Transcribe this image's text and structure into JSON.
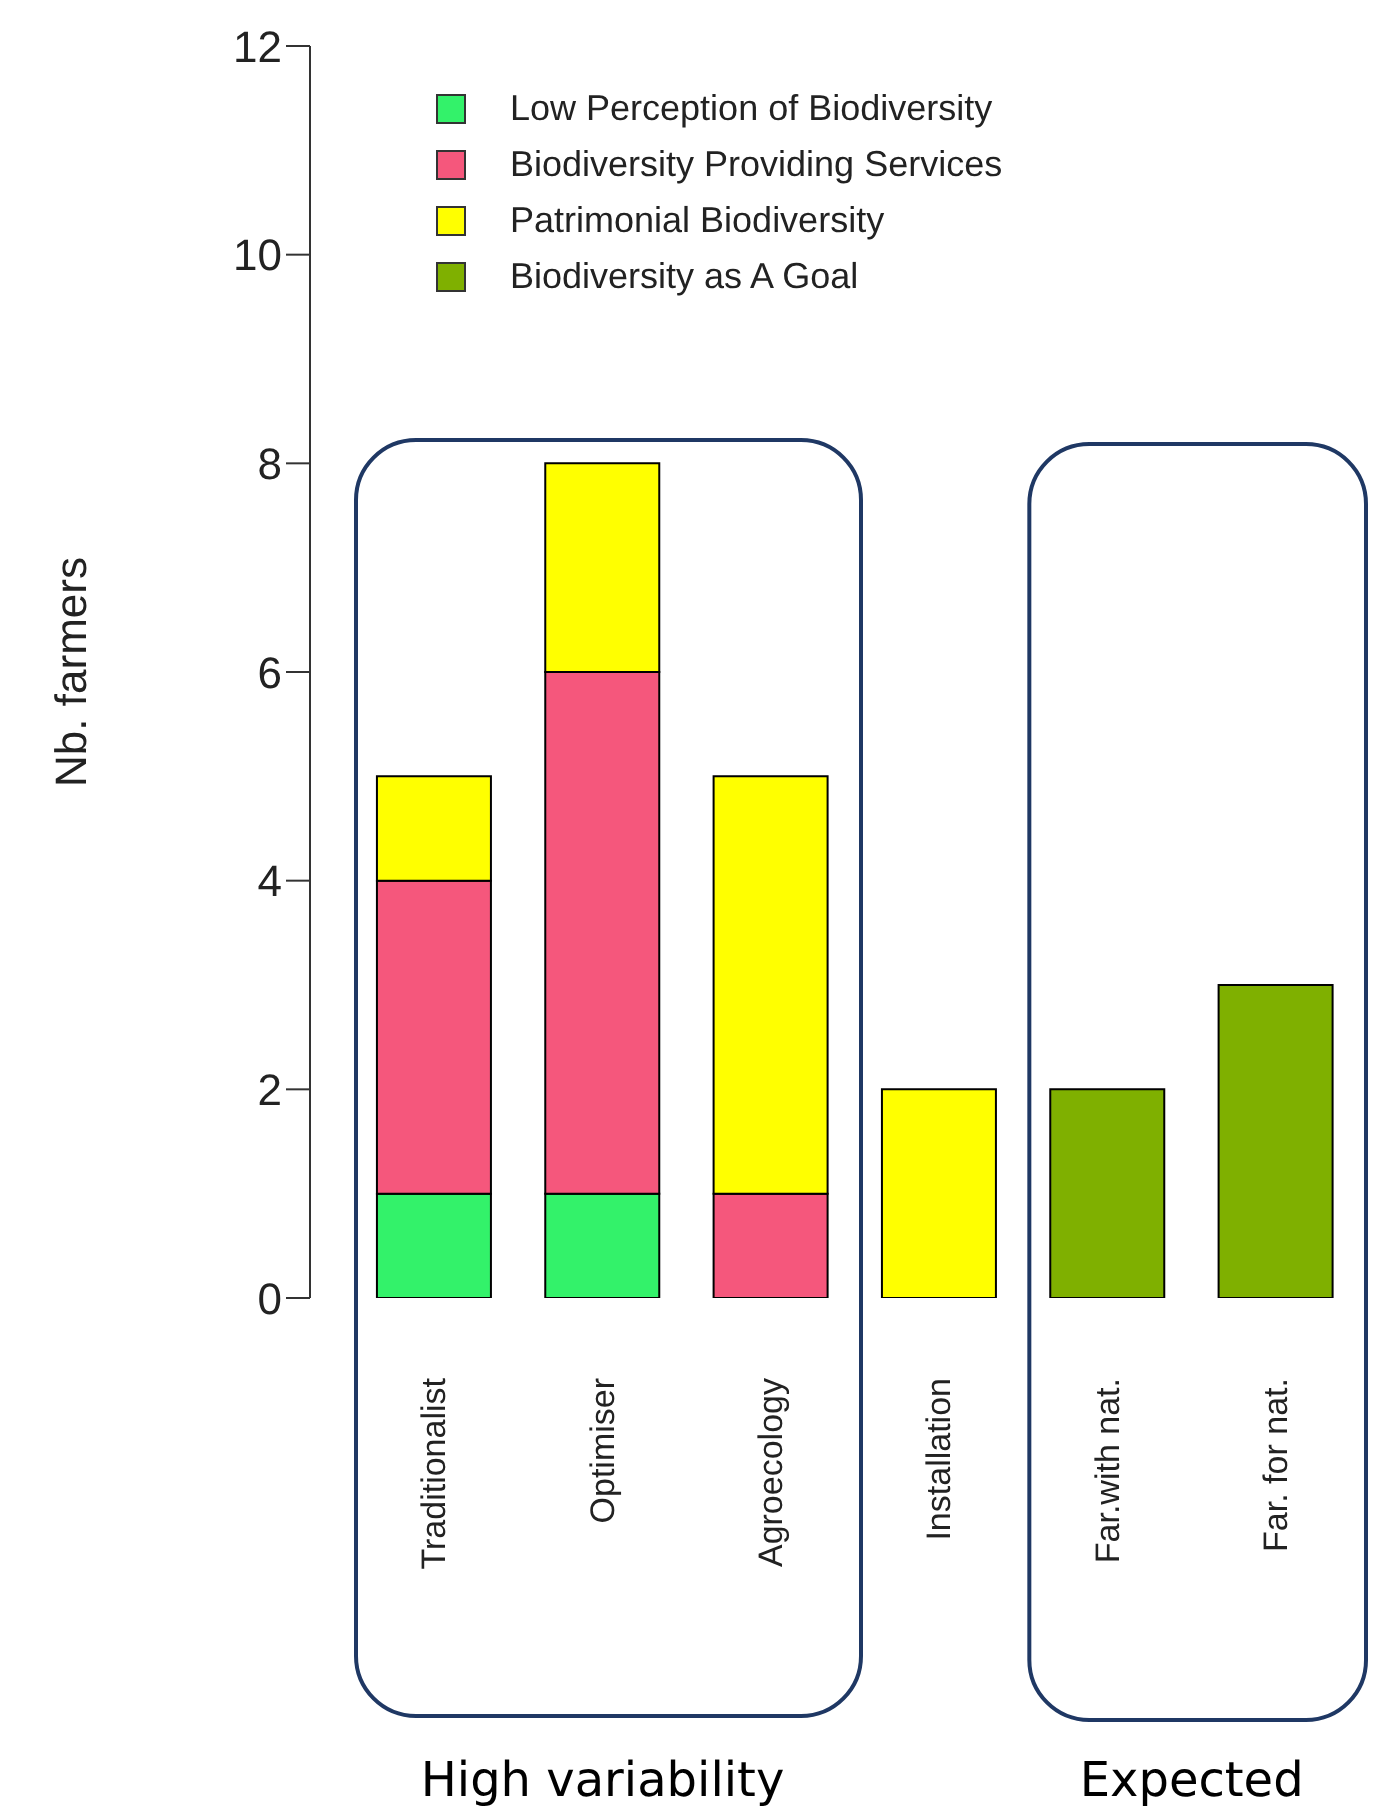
{
  "chart_data": {
    "type": "bar",
    "ylabel": "Nb. farmers",
    "categories": [
      "Traditionalist",
      "Optimiser",
      "Agroecology",
      "Installation",
      "Far.with nat.",
      "Far. for nat."
    ],
    "series": [
      {
        "name": "Low Perception of Biodiversity",
        "color": "#33f26a",
        "values": [
          1,
          1,
          0,
          0,
          0,
          0
        ]
      },
      {
        "name": "Biodiversity Providing Services",
        "color": "#f5577c",
        "values": [
          3,
          5,
          1,
          0,
          0,
          0
        ]
      },
      {
        "name": "Patrimonial Biodiversity",
        "color": "#ffff00",
        "values": [
          1,
          2,
          4,
          2,
          0,
          0
        ]
      },
      {
        "name": "Biodiversity as A Goal",
        "color": "#7fb000",
        "values": [
          0,
          0,
          0,
          0,
          2,
          3
        ]
      }
    ],
    "stacked": true,
    "ylim": [
      0,
      12
    ],
    "yticks": [
      0,
      2,
      4,
      6,
      8,
      10,
      12
    ],
    "grid": false,
    "legend": "top",
    "annotations": [
      "High variability",
      "Expected"
    ]
  }
}
